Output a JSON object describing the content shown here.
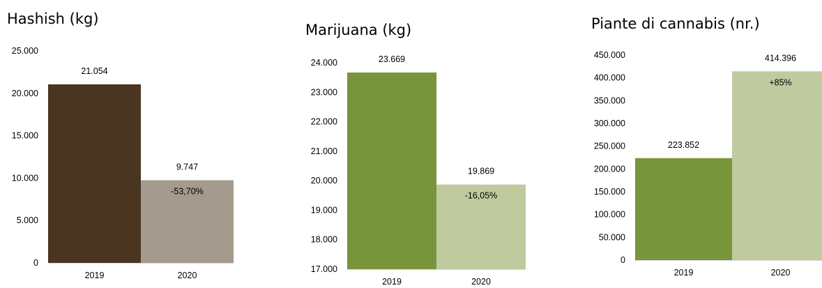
{
  "chart_data": [
    {
      "type": "bar",
      "title": "Hashish (kg)",
      "categories": [
        "2019",
        "2020"
      ],
      "values": [
        21054,
        9747
      ],
      "value_labels": [
        "21.054",
        "9.747"
      ],
      "annotations": [
        "",
        "-53,70%"
      ],
      "colors": [
        "#4a3520",
        "#a59a8e"
      ],
      "ylim": [
        0,
        25000
      ],
      "yticks": [
        "0",
        "5.000",
        "10.000",
        "15.000",
        "20.000",
        "25.000"
      ],
      "grid": false
    },
    {
      "type": "bar",
      "title": "Marijuana (kg)",
      "categories": [
        "2019",
        "2020"
      ],
      "values": [
        23669,
        19869
      ],
      "value_labels": [
        "23.669",
        "19.869"
      ],
      "annotations": [
        "",
        "-16,05%"
      ],
      "colors": [
        "#78953b",
        "#bfcb9f"
      ],
      "ylim": [
        17000,
        24000
      ],
      "yticks": [
        "17.000",
        "18.000",
        "19.000",
        "20.000",
        "21.000",
        "22.000",
        "23.000",
        "24.000"
      ],
      "grid": false
    },
    {
      "type": "bar",
      "title": "Piante di cannabis (nr.)",
      "categories": [
        "2019",
        "2020"
      ],
      "values": [
        223852,
        414396
      ],
      "value_labels": [
        "223.852",
        "414.396"
      ],
      "annotations": [
        "",
        "+85%"
      ],
      "colors": [
        "#78953b",
        "#bfcb9f"
      ],
      "ylim": [
        0,
        450000
      ],
      "yticks": [
        "0",
        "50.000",
        "100.000",
        "150.000",
        "200.000",
        "250.000",
        "300.000",
        "350.000",
        "400.000",
        "450.000"
      ],
      "grid": false
    }
  ]
}
